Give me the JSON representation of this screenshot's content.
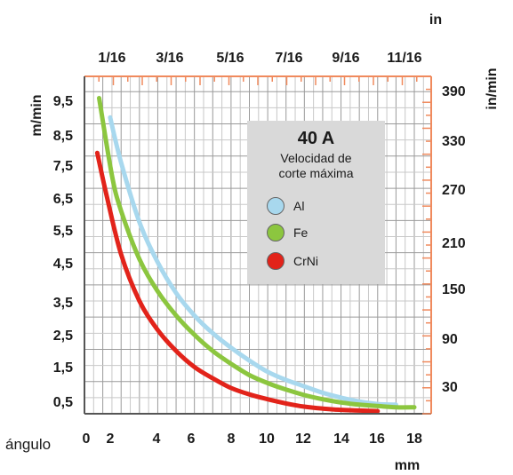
{
  "chart_data": {
    "type": "line",
    "title": "40 A",
    "subtitle": "Velocidad de corte máxima",
    "x_bottom": {
      "label": "mm",
      "ticks": [
        "0",
        "2",
        "4",
        "6",
        "8",
        "10",
        "12",
        "14",
        "16",
        "18"
      ],
      "range": [
        0,
        18
      ]
    },
    "x_top": {
      "label": "in",
      "ticks": [
        "1/16",
        "3/16",
        "5/16",
        "7/16",
        "9/16",
        "11/16"
      ]
    },
    "y_left": {
      "label": "m/min",
      "ticks": [
        "0,5",
        "1,5",
        "2,5",
        "3,5",
        "4,5",
        "5,5",
        "6,5",
        "7,5",
        "8,5",
        "9,5"
      ],
      "range": [
        0,
        10.2
      ]
    },
    "y_right": {
      "label": "in/min",
      "ticks": [
        "30",
        "90",
        "150",
        "210",
        "270",
        "330",
        "390"
      ]
    },
    "corner_label": "ángulo",
    "series": [
      {
        "name": "Al",
        "color": "#a8d8ee",
        "x": [
          1.4,
          2,
          3,
          4,
          5,
          6,
          7,
          8,
          9,
          10,
          11,
          12,
          13,
          14,
          15,
          16,
          17
        ],
        "y": [
          9.2,
          7.8,
          5.95,
          4.7,
          3.75,
          3.05,
          2.5,
          2.05,
          1.65,
          1.3,
          1.05,
          0.85,
          0.65,
          0.5,
          0.38,
          0.3,
          0.28
        ]
      },
      {
        "name": "Fe",
        "color": "#8cc63f",
        "x": [
          0.8,
          1.5,
          2,
          3,
          4,
          5,
          6,
          7,
          8,
          9,
          10,
          11,
          12,
          13,
          14,
          15,
          16,
          17,
          18
        ],
        "y": [
          9.8,
          7.4,
          6.3,
          4.8,
          3.8,
          3.05,
          2.45,
          1.95,
          1.55,
          1.2,
          0.95,
          0.75,
          0.58,
          0.45,
          0.35,
          0.28,
          0.24,
          0.2,
          0.2
        ]
      },
      {
        "name": "CrNi",
        "color": "#e2231a",
        "x": [
          0.7,
          1.2,
          2,
          3,
          4,
          5,
          6,
          7,
          8,
          9,
          10,
          11,
          12,
          13,
          14,
          15,
          16
        ],
        "y": [
          8.1,
          6.8,
          4.95,
          3.5,
          2.6,
          1.95,
          1.45,
          1.1,
          0.8,
          0.6,
          0.45,
          0.32,
          0.22,
          0.16,
          0.12,
          0.1,
          0.08
        ]
      }
    ],
    "grid": true,
    "legend_position": "top-right"
  }
}
